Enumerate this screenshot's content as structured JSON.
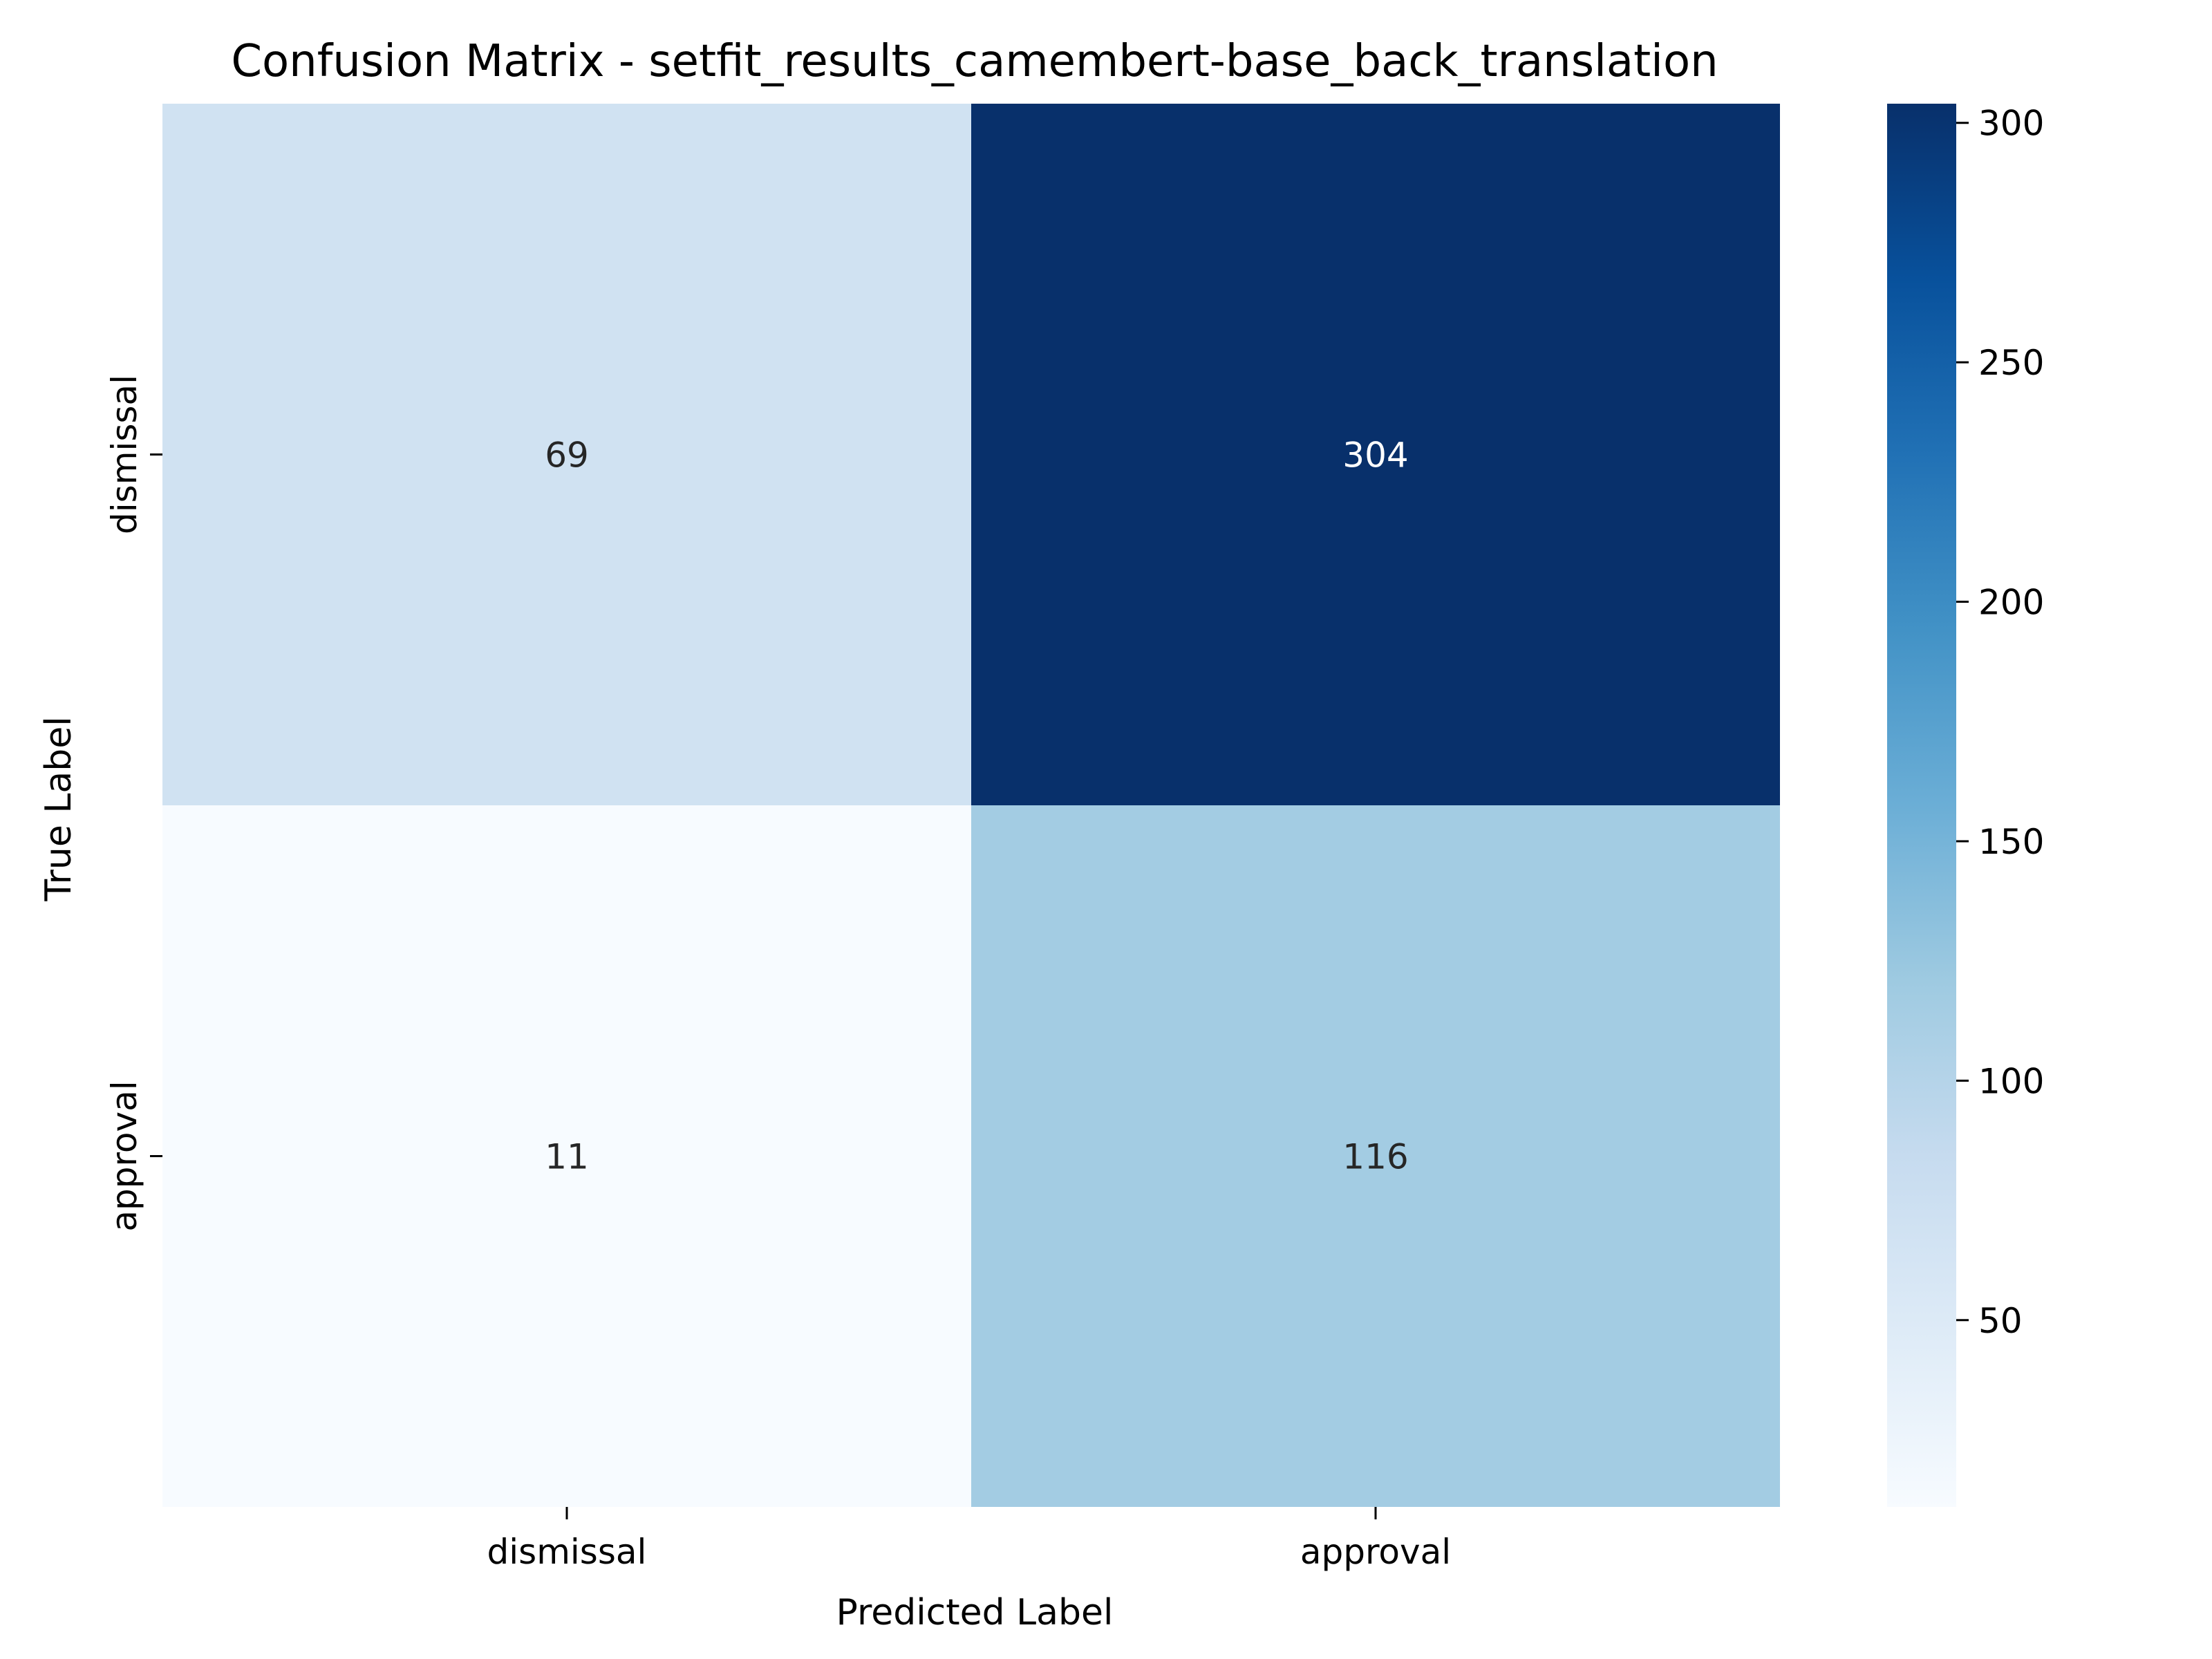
{
  "chart_data": {
    "type": "heatmap",
    "title": "Confusion Matrix - setfit_results_camembert-base_back_translation",
    "xlabel": "Predicted Label",
    "ylabel": "True Label",
    "x_categories": [
      "dismissal",
      "approval"
    ],
    "y_categories": [
      "dismissal",
      "approval"
    ],
    "values": [
      [
        69,
        304
      ],
      [
        11,
        116
      ]
    ],
    "colormap": "Blues",
    "colorbar": {
      "range": [
        11,
        304
      ],
      "ticks": [
        50,
        100,
        150,
        200,
        250,
        300
      ]
    },
    "colors": {
      "annotation_dark": "#262626",
      "annotation_light": "#ffffff"
    }
  }
}
